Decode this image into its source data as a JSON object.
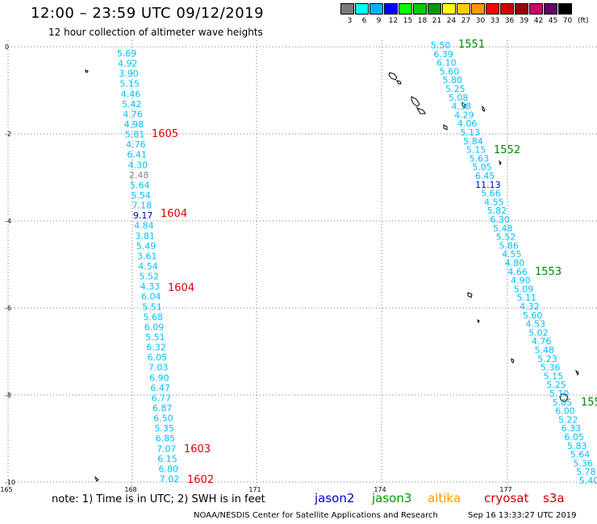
{
  "header": {
    "title": "12:00 – 23:59 UTC 09/12/2019",
    "subtitle": "12 hour collection of altimeter wave heights"
  },
  "legend": {
    "unit": "(ft)",
    "bins": [
      {
        "label": "3",
        "color": "#7a7a7a"
      },
      {
        "label": "6",
        "color": "#00ffff"
      },
      {
        "label": "9",
        "color": "#00b4ff"
      },
      {
        "label": "12",
        "color": "#0000ff"
      },
      {
        "label": "15",
        "color": "#00ff00"
      },
      {
        "label": "18",
        "color": "#00cc00"
      },
      {
        "label": "21",
        "color": "#009900"
      },
      {
        "label": "24",
        "color": "#ffff00"
      },
      {
        "label": "27",
        "color": "#ffcc00"
      },
      {
        "label": "30",
        "color": "#ff9900"
      },
      {
        "label": "33",
        "color": "#ff0000"
      },
      {
        "label": "36",
        "color": "#cc0000"
      },
      {
        "label": "39",
        "color": "#990000"
      },
      {
        "label": "42",
        "color": "#cc0066"
      },
      {
        "label": "45",
        "color": "#660066"
      },
      {
        "label": "70",
        "color": "#000000"
      }
    ]
  },
  "axes": {
    "lat_labels": [
      "0",
      "-2",
      "-4",
      "-6",
      "-8",
      "-10"
    ],
    "lon_labels": [
      "165",
      "168",
      "171",
      "174",
      "177"
    ]
  },
  "tracks": {
    "western": [
      {
        "v": "5.69",
        "c": "#00bfff"
      },
      {
        "v": "4.92",
        "c": "#00bfff"
      },
      {
        "v": "3.90",
        "c": "#00bfff"
      },
      {
        "v": "5.15",
        "c": "#00bfff"
      },
      {
        "v": "4.46",
        "c": "#00bfff"
      },
      {
        "v": "5.42",
        "c": "#00bfff"
      },
      {
        "v": "4.76",
        "c": "#00bfff"
      },
      {
        "v": "4.98",
        "c": "#00bfff"
      },
      {
        "v": "5.81",
        "c": "#00bfff"
      },
      {
        "v": "4.76",
        "c": "#00bfff"
      },
      {
        "v": "6.41",
        "c": "#00bfff"
      },
      {
        "v": "4.30",
        "c": "#00bfff"
      },
      {
        "v": "2.48",
        "c": "#888888"
      },
      {
        "v": "5.64",
        "c": "#00bfff"
      },
      {
        "v": "5.54",
        "c": "#00bfff"
      },
      {
        "v": "7.18",
        "c": "#00bfff"
      },
      {
        "v": "9.17",
        "c": "#0000aa"
      },
      {
        "v": "4.84",
        "c": "#00bfff"
      },
      {
        "v": "3.81",
        "c": "#00bfff"
      },
      {
        "v": "5.49",
        "c": "#00bfff"
      },
      {
        "v": "3.61",
        "c": "#00bfff"
      },
      {
        "v": "4.54",
        "c": "#00bfff"
      },
      {
        "v": "5.52",
        "c": "#00bfff"
      },
      {
        "v": "4.33",
        "c": "#00bfff"
      },
      {
        "v": "6.04",
        "c": "#00bfff"
      },
      {
        "v": "5.51",
        "c": "#00bfff"
      },
      {
        "v": "5.68",
        "c": "#00bfff"
      },
      {
        "v": "6.09",
        "c": "#00bfff"
      },
      {
        "v": "5.51",
        "c": "#00bfff"
      },
      {
        "v": "6.32",
        "c": "#00bfff"
      },
      {
        "v": "6.05",
        "c": "#00bfff"
      },
      {
        "v": "7.03",
        "c": "#00bfff"
      },
      {
        "v": "6.90",
        "c": "#00bfff"
      },
      {
        "v": "6.47",
        "c": "#00bfff"
      },
      {
        "v": "6.77",
        "c": "#00bfff"
      },
      {
        "v": "6.87",
        "c": "#00bfff"
      },
      {
        "v": "6.50",
        "c": "#00bfff"
      },
      {
        "v": "5.35",
        "c": "#00bfff"
      },
      {
        "v": "6.85",
        "c": "#00bfff"
      },
      {
        "v": "7.07",
        "c": "#00bfff"
      },
      {
        "v": "6.15",
        "c": "#00bfff"
      },
      {
        "v": "6.80",
        "c": "#00bfff"
      },
      {
        "v": "7.02",
        "c": "#00bfff"
      }
    ],
    "eastern": [
      {
        "v": "5.50",
        "c": "#00bfff"
      },
      {
        "v": "6.39",
        "c": "#00bfff"
      },
      {
        "v": "6.10",
        "c": "#00bfff"
      },
      {
        "v": "5.60",
        "c": "#00bfff"
      },
      {
        "v": "5.80",
        "c": "#00bfff"
      },
      {
        "v": "5.25",
        "c": "#00bfff"
      },
      {
        "v": "5.08",
        "c": "#00bfff"
      },
      {
        "v": "4.38",
        "c": "#00bfff"
      },
      {
        "v": "4.29",
        "c": "#00bfff"
      },
      {
        "v": "4.06",
        "c": "#00bfff"
      },
      {
        "v": "5.13",
        "c": "#00bfff"
      },
      {
        "v": "5.84",
        "c": "#00bfff"
      },
      {
        "v": "5.15",
        "c": "#00bfff"
      },
      {
        "v": "5.63",
        "c": "#00bfff"
      },
      {
        "v": "5.05",
        "c": "#00bfff"
      },
      {
        "v": "6.45",
        "c": "#00bfff"
      },
      {
        "v": "11.13",
        "c": "#0000aa"
      },
      {
        "v": "5.66",
        "c": "#00bfff"
      },
      {
        "v": "4.55",
        "c": "#00bfff"
      },
      {
        "v": "5.82",
        "c": "#00bfff"
      },
      {
        "v": "6.30",
        "c": "#00bfff"
      },
      {
        "v": "5.48",
        "c": "#00bfff"
      },
      {
        "v": "5.52",
        "c": "#00bfff"
      },
      {
        "v": "5.86",
        "c": "#00bfff"
      },
      {
        "v": "4.55",
        "c": "#00bfff"
      },
      {
        "v": "4.80",
        "c": "#00bfff"
      },
      {
        "v": "4.66",
        "c": "#00bfff"
      },
      {
        "v": "4.90",
        "c": "#00bfff"
      },
      {
        "v": "5.09",
        "c": "#00bfff"
      },
      {
        "v": "5.11",
        "c": "#00bfff"
      },
      {
        "v": "4.32",
        "c": "#00bfff"
      },
      {
        "v": "5.60",
        "c": "#00bfff"
      },
      {
        "v": "4.53",
        "c": "#00bfff"
      },
      {
        "v": "5.02",
        "c": "#00bfff"
      },
      {
        "v": "4.76",
        "c": "#00bfff"
      },
      {
        "v": "5.48",
        "c": "#00bfff"
      },
      {
        "v": "5.23",
        "c": "#00bfff"
      },
      {
        "v": "5.36",
        "c": "#00bfff"
      },
      {
        "v": "5.15",
        "c": "#00bfff"
      },
      {
        "v": "5.25",
        "c": "#00bfff"
      },
      {
        "v": "5.10",
        "c": "#00bfff"
      },
      {
        "v": "5.85",
        "c": "#00bfff"
      },
      {
        "v": "6.00",
        "c": "#00bfff"
      },
      {
        "v": "5.22",
        "c": "#00bfff"
      },
      {
        "v": "6.33",
        "c": "#00bfff"
      },
      {
        "v": "6.05",
        "c": "#00bfff"
      },
      {
        "v": "5.83",
        "c": "#00bfff"
      },
      {
        "v": "5.64",
        "c": "#00bfff"
      },
      {
        "v": "5.36",
        "c": "#00bfff"
      },
      {
        "v": "5.78",
        "c": "#00bfff"
      },
      {
        "v": "5.40",
        "c": "#00bfff"
      }
    ]
  },
  "time_labels": {
    "western": [
      {
        "text": "1605",
        "color": "#dd0000"
      },
      {
        "text": "1604",
        "color": "#dd0000"
      },
      {
        "text": "1604",
        "color": "#dd0000"
      },
      {
        "text": "1603",
        "color": "#dd0000"
      },
      {
        "text": "1602",
        "color": "#dd0000"
      }
    ],
    "eastern": [
      {
        "text": "1551",
        "color": "#008800"
      },
      {
        "text": "1552",
        "color": "#008800"
      },
      {
        "text": "1553",
        "color": "#008800"
      },
      {
        "text": "155",
        "color": "#008800"
      }
    ]
  },
  "footer": {
    "note": "note: 1) Time is in UTC; 2) SWH is in feet",
    "satellites": [
      {
        "name": "jason2",
        "color": "#0000cc"
      },
      {
        "name": "jason3",
        "color": "#009900"
      },
      {
        "name": "altika",
        "color": "#ff9900"
      },
      {
        "name": "cryosat",
        "color": "#cc0000"
      },
      {
        "name": "s3a",
        "color": "#cc0000"
      }
    ],
    "credit": "NOAA/NESDIS Center for Satellite Applications and Research",
    "timestamp": "Sep 16 13:33:27 UTC 2019"
  }
}
